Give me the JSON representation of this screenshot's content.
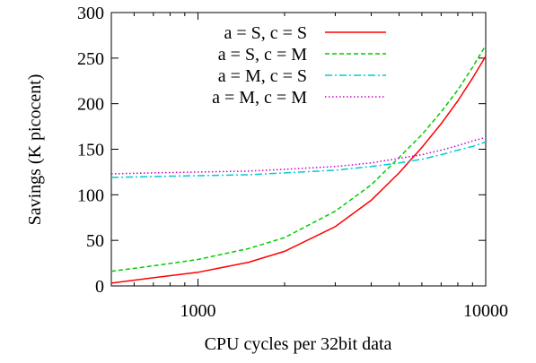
{
  "chart_data": {
    "type": "line",
    "xlabel": "CPU cycles per 32bit data",
    "ylabel": "Savings (K picocent)",
    "xscale": "log",
    "xlim": [
      500,
      10000
    ],
    "ylim": [
      0,
      300
    ],
    "x_ticks": [
      1000,
      10000
    ],
    "x_tick_labels": [
      "1000",
      "10000"
    ],
    "y_ticks": [
      0,
      50,
      100,
      150,
      200,
      250,
      300
    ],
    "y_tick_labels": [
      "0",
      "50",
      "100",
      "150",
      "200",
      "250",
      "300"
    ],
    "grid": false,
    "legend_position": "top-left",
    "x": [
      500,
      700,
      1000,
      1500,
      2000,
      3000,
      4000,
      5000,
      6000,
      7000,
      8000,
      9000,
      10000
    ],
    "series": [
      {
        "name": "a = S, c = S",
        "color": "#ff0000",
        "dash": "solid",
        "values": [
          3,
          9,
          15,
          26,
          38,
          65,
          94,
          124,
          152,
          178,
          203,
          228,
          252
        ]
      },
      {
        "name": "a = S, c = M",
        "color": "#00cc00",
        "dash": "dashed",
        "values": [
          16,
          22,
          29,
          41,
          53,
          82,
          111,
          141,
          166,
          191,
          215,
          240,
          264
        ]
      },
      {
        "name": "a = M, c = S",
        "color": "#00cccc",
        "dash": "dashdot",
        "values": [
          119,
          120,
          121,
          122,
          124,
          127,
          131,
          135,
          139,
          144,
          149,
          153,
          158
        ]
      },
      {
        "name": "a = M, c = M",
        "color": "#cc00cc",
        "dash": "dotted",
        "values": [
          123,
          124,
          125,
          126,
          128,
          131,
          135,
          140,
          144,
          149,
          154,
          159,
          163
        ]
      }
    ]
  }
}
